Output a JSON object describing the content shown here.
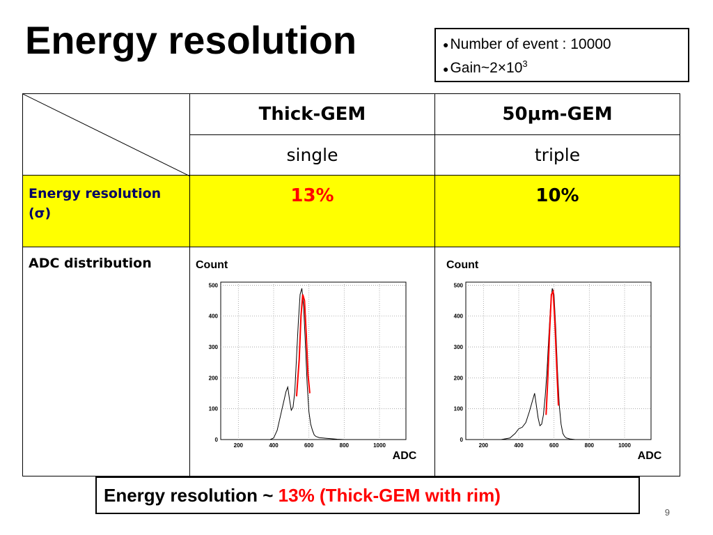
{
  "title": "Energy resolution",
  "info": {
    "line1": "Number of event : 10000",
    "line2_prefix": "Gain~2×10",
    "line2_sup": "3",
    "bullet_icon": "filled-circle"
  },
  "table": {
    "col1_header": "Thick-GEM",
    "col2_header": "50μm-GEM",
    "col1_sub": "single",
    "col2_sub": "triple",
    "res_label": "Energy resolution (σ)",
    "res_col1": "13%",
    "res_col2": "10%",
    "adc_label": "ADC distribution",
    "highlight_color": "#ffff00",
    "value_red_color": "#ff0000"
  },
  "plots": [
    {
      "ylabel": "Count",
      "xlabel": "ADC"
    },
    {
      "ylabel": "Count",
      "xlabel": "ADC"
    }
  ],
  "chart_data": [
    {
      "type": "line",
      "xlabel": "ADC",
      "ylabel": "Count",
      "xlim": [
        100,
        1150
      ],
      "ylim": [
        0,
        510
      ],
      "x_ticks": [
        "200",
        "400",
        "600",
        "800",
        "1000"
      ],
      "y_ticks": [
        "0",
        "100",
        "200",
        "300",
        "400",
        "500"
      ],
      "grid": true,
      "series": [
        {
          "x": [
            380,
            400,
            420,
            440,
            460,
            470,
            480,
            490,
            500,
            510,
            520,
            530,
            540,
            550,
            560,
            570,
            580,
            590,
            600,
            610,
            620,
            630,
            640,
            660,
            680,
            700,
            720,
            760,
            800
          ],
          "values": [
            0,
            5,
            30,
            80,
            130,
            155,
            170,
            130,
            95,
            105,
            155,
            270,
            380,
            470,
            490,
            430,
            310,
            180,
            90,
            50,
            30,
            15,
            10,
            6,
            5,
            4,
            3,
            1,
            0
          ]
        },
        {
          "x": [
            530,
            545,
            555,
            565,
            575,
            585,
            595,
            605
          ],
          "values": [
            140,
            260,
            400,
            470,
            450,
            340,
            210,
            150
          ]
        }
      ]
    },
    {
      "type": "line",
      "xlabel": "ADC",
      "ylabel": "Count",
      "xlim": [
        100,
        1150
      ],
      "ylim": [
        0,
        510
      ],
      "x_ticks": [
        "200",
        "400",
        "600",
        "800",
        "1000"
      ],
      "y_ticks": [
        "0",
        "100",
        "200",
        "300",
        "400",
        "500"
      ],
      "grid": true,
      "series": [
        {
          "x": [
            300,
            350,
            380,
            400,
            420,
            440,
            460,
            480,
            490,
            500,
            510,
            520,
            530,
            540,
            550,
            560,
            570,
            580,
            590,
            600,
            610,
            620,
            630,
            640,
            650,
            660,
            670,
            690,
            720
          ],
          "values": [
            0,
            5,
            20,
            35,
            40,
            55,
            90,
            130,
            150,
            110,
            70,
            45,
            50,
            80,
            140,
            220,
            330,
            430,
            490,
            470,
            360,
            220,
            110,
            50,
            20,
            10,
            5,
            2,
            0
          ]
        },
        {
          "x": [
            555,
            565,
            575,
            585,
            595,
            605,
            615,
            625
          ],
          "values": [
            80,
            200,
            350,
            470,
            480,
            380,
            240,
            110
          ]
        }
      ]
    }
  ],
  "bottom": {
    "prefix": "Energy resolution ~ ",
    "highlight": "13% (Thick-GEM with rim)"
  },
  "page_number": "9"
}
